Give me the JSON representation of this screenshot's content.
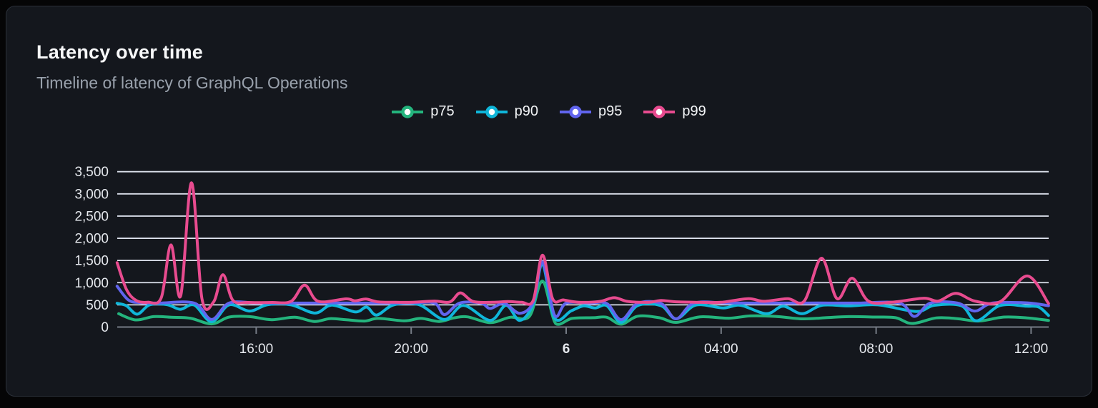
{
  "card": {
    "title": "Latency over time",
    "subtitle": "Timeline of latency of GraphQL Operations"
  },
  "colors": {
    "page_background": "#050506",
    "card_background": "#14171d",
    "card_border": "#2b3039",
    "gridline": "#dbe0eb",
    "axis_line": "#767c86",
    "axis_label": "#e6e9ee",
    "title_text": "#f7f8f9",
    "subtitle_text": "#99a1ac"
  },
  "chart_data": {
    "type": "line",
    "title": "Latency over time",
    "xlabel": "",
    "ylabel": "",
    "grid": true,
    "legend_position": "top-center",
    "x_axis": {
      "unit": "hours relative to midnight of day 6",
      "start": -11.59,
      "end": 12.45,
      "ticks": [
        {
          "label": "16:00",
          "h": -8,
          "bold": false
        },
        {
          "label": "20:00",
          "h": -4,
          "bold": false
        },
        {
          "label": "6",
          "h": 0,
          "bold": true
        },
        {
          "label": "04:00",
          "h": 4,
          "bold": false
        },
        {
          "label": "08:00",
          "h": 8,
          "bold": false
        },
        {
          "label": "12:00",
          "h": 12,
          "bold": false
        }
      ]
    },
    "y_axis": {
      "min": 0,
      "max": 3500,
      "tick_step": 500,
      "tick_labels": [
        "0",
        "500",
        "1,000",
        "1,500",
        "2,000",
        "2,500",
        "3,000",
        "3,500"
      ]
    },
    "series": [
      {
        "name": "p75",
        "color": "#24b47d",
        "points": [
          [
            -11.55,
            300
          ],
          [
            -11.11,
            160
          ],
          [
            -10.65,
            235
          ],
          [
            -10.2,
            220
          ],
          [
            -9.7,
            200
          ],
          [
            -9.15,
            70
          ],
          [
            -8.7,
            225
          ],
          [
            -8.17,
            235
          ],
          [
            -7.6,
            165
          ],
          [
            -7.0,
            220
          ],
          [
            -6.5,
            125
          ],
          [
            -6.1,
            190
          ],
          [
            -5.68,
            165
          ],
          [
            -5.2,
            135
          ],
          [
            -4.85,
            195
          ],
          [
            -4.17,
            140
          ],
          [
            -3.75,
            195
          ],
          [
            -3.28,
            125
          ],
          [
            -2.9,
            205
          ],
          [
            -2.55,
            230
          ],
          [
            -1.96,
            100
          ],
          [
            -1.45,
            220
          ],
          [
            -0.95,
            240
          ],
          [
            -0.61,
            1035
          ],
          [
            -0.27,
            75
          ],
          [
            0.15,
            195
          ],
          [
            0.7,
            210
          ],
          [
            1.05,
            220
          ],
          [
            1.42,
            65
          ],
          [
            1.85,
            245
          ],
          [
            2.4,
            210
          ],
          [
            2.84,
            105
          ],
          [
            3.45,
            230
          ],
          [
            4.2,
            200
          ],
          [
            4.75,
            250
          ],
          [
            5.4,
            240
          ],
          [
            6.09,
            185
          ],
          [
            6.7,
            210
          ],
          [
            7.3,
            235
          ],
          [
            7.95,
            225
          ],
          [
            8.5,
            210
          ],
          [
            8.93,
            80
          ],
          [
            9.55,
            205
          ],
          [
            10.09,
            190
          ],
          [
            10.65,
            135
          ],
          [
            11.3,
            225
          ],
          [
            11.9,
            205
          ],
          [
            12.45,
            150
          ]
        ]
      },
      {
        "name": "p90",
        "color": "#0fb6d9",
        "points": [
          [
            -11.59,
            535
          ],
          [
            -11.35,
            480
          ],
          [
            -11.07,
            290
          ],
          [
            -10.75,
            500
          ],
          [
            -10.3,
            505
          ],
          [
            -9.96,
            400
          ],
          [
            -9.6,
            495
          ],
          [
            -9.15,
            120
          ],
          [
            -8.7,
            500
          ],
          [
            -8.17,
            360
          ],
          [
            -7.7,
            505
          ],
          [
            -7.1,
            500
          ],
          [
            -6.48,
            315
          ],
          [
            -6.05,
            495
          ],
          [
            -5.44,
            340
          ],
          [
            -5.15,
            450
          ],
          [
            -4.89,
            270
          ],
          [
            -4.45,
            500
          ],
          [
            -3.8,
            505
          ],
          [
            -3.14,
            170
          ],
          [
            -2.65,
            485
          ],
          [
            -1.96,
            150
          ],
          [
            -1.55,
            490
          ],
          [
            -1.2,
            150
          ],
          [
            -0.85,
            520
          ],
          [
            -0.61,
            1420
          ],
          [
            -0.3,
            205
          ],
          [
            0.13,
            365
          ],
          [
            0.45,
            475
          ],
          [
            0.75,
            430
          ],
          [
            1.05,
            480
          ],
          [
            1.42,
            105
          ],
          [
            1.85,
            485
          ],
          [
            2.45,
            480
          ],
          [
            2.84,
            185
          ],
          [
            3.35,
            495
          ],
          [
            4.05,
            430
          ],
          [
            4.5,
            490
          ],
          [
            5.17,
            300
          ],
          [
            5.6,
            470
          ],
          [
            6.09,
            300
          ],
          [
            6.6,
            490
          ],
          [
            7.3,
            475
          ],
          [
            8.05,
            500
          ],
          [
            9.04,
            350
          ],
          [
            9.5,
            490
          ],
          [
            10.2,
            480
          ],
          [
            10.59,
            140
          ],
          [
            11.2,
            485
          ],
          [
            11.88,
            470
          ],
          [
            12.2,
            450
          ],
          [
            12.45,
            260
          ]
        ]
      },
      {
        "name": "p95",
        "color": "#6165ee",
        "points": [
          [
            -11.59,
            920
          ],
          [
            -11.3,
            610
          ],
          [
            -11.0,
            550
          ],
          [
            -10.5,
            540
          ],
          [
            -9.6,
            540
          ],
          [
            -9.15,
            170
          ],
          [
            -8.7,
            540
          ],
          [
            -8.0,
            545
          ],
          [
            -7.0,
            540
          ],
          [
            -6.0,
            542
          ],
          [
            -5.0,
            540
          ],
          [
            -4.0,
            545
          ],
          [
            -3.4,
            540
          ],
          [
            -3.14,
            280
          ],
          [
            -2.75,
            540
          ],
          [
            -2.2,
            540
          ],
          [
            -1.96,
            420
          ],
          [
            -1.6,
            535
          ],
          [
            -1.2,
            310
          ],
          [
            -0.85,
            560
          ],
          [
            -0.61,
            1465
          ],
          [
            -0.3,
            270
          ],
          [
            0.0,
            540
          ],
          [
            0.6,
            540
          ],
          [
            1.05,
            530
          ],
          [
            1.42,
            165
          ],
          [
            1.85,
            535
          ],
          [
            2.45,
            530
          ],
          [
            2.84,
            185
          ],
          [
            3.3,
            540
          ],
          [
            4.2,
            542
          ],
          [
            5.5,
            540
          ],
          [
            6.5,
            542
          ],
          [
            7.5,
            540
          ],
          [
            8.6,
            540
          ],
          [
            8.99,
            240
          ],
          [
            9.4,
            540
          ],
          [
            10.1,
            540
          ],
          [
            10.55,
            360
          ],
          [
            11.0,
            540
          ],
          [
            11.9,
            545
          ],
          [
            12.45,
            480
          ]
        ]
      },
      {
        "name": "p99",
        "color": "#e84b8f",
        "points": [
          [
            -11.59,
            1450
          ],
          [
            -11.35,
            850
          ],
          [
            -11.1,
            600
          ],
          [
            -10.8,
            560
          ],
          [
            -10.45,
            660
          ],
          [
            -10.2,
            1850
          ],
          [
            -9.95,
            700
          ],
          [
            -9.67,
            3250
          ],
          [
            -9.4,
            640
          ],
          [
            -9.1,
            565
          ],
          [
            -8.86,
            1180
          ],
          [
            -8.6,
            600
          ],
          [
            -8.2,
            555
          ],
          [
            -7.6,
            555
          ],
          [
            -7.1,
            580
          ],
          [
            -6.75,
            945
          ],
          [
            -6.4,
            580
          ],
          [
            -5.68,
            635
          ],
          [
            -5.45,
            590
          ],
          [
            -5.17,
            630
          ],
          [
            -4.85,
            565
          ],
          [
            -4.4,
            558
          ],
          [
            -3.95,
            560
          ],
          [
            -3.4,
            585
          ],
          [
            -3.0,
            565
          ],
          [
            -2.73,
            770
          ],
          [
            -2.4,
            575
          ],
          [
            -1.9,
            558
          ],
          [
            -1.5,
            575
          ],
          [
            -1.15,
            560
          ],
          [
            -0.85,
            600
          ],
          [
            -0.61,
            1620
          ],
          [
            -0.35,
            640
          ],
          [
            -0.07,
            610
          ],
          [
            0.3,
            560
          ],
          [
            0.85,
            575
          ],
          [
            1.24,
            660
          ],
          [
            1.6,
            575
          ],
          [
            2.15,
            560
          ],
          [
            2.45,
            600
          ],
          [
            2.8,
            570
          ],
          [
            3.3,
            560
          ],
          [
            4.0,
            558
          ],
          [
            4.7,
            640
          ],
          [
            5.1,
            580
          ],
          [
            5.72,
            640
          ],
          [
            6.15,
            590
          ],
          [
            6.59,
            1550
          ],
          [
            6.99,
            640
          ],
          [
            7.38,
            1100
          ],
          [
            7.8,
            585
          ],
          [
            8.4,
            560
          ],
          [
            9.23,
            650
          ],
          [
            9.6,
            585
          ],
          [
            10.06,
            760
          ],
          [
            10.55,
            585
          ],
          [
            11.2,
            570
          ],
          [
            11.9,
            1150
          ],
          [
            12.45,
            530
          ]
        ]
      }
    ]
  }
}
